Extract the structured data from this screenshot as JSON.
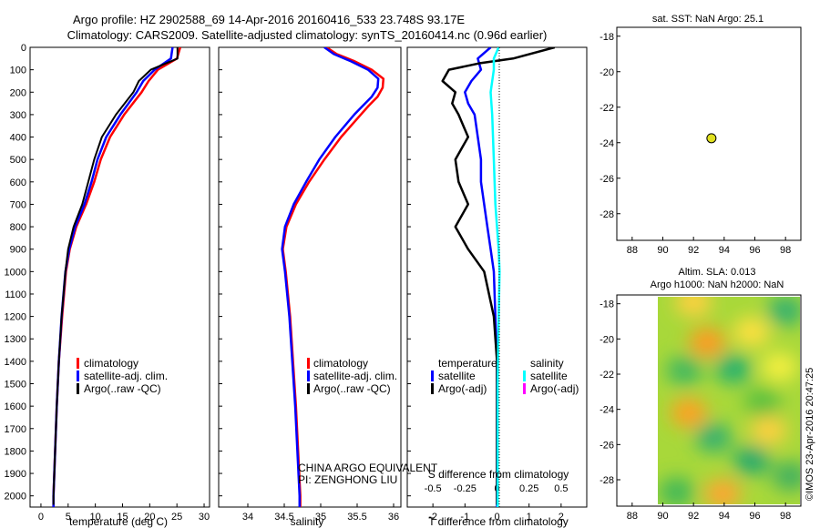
{
  "header": {
    "line1": "Argo profile: HZ 2902588_69 14-Apr-2016 20160416_533 23.748S 93.17E",
    "line2": "Climatology: CARS2009. Satellite-adjusted climatology: synTS_20160414.nc (0.96d earlier)"
  },
  "legend_common": {
    "climatology": "climatology",
    "satellite": "satellite-adj. clim.",
    "argo": "Argo(..raw -QC)"
  },
  "legend_diff": {
    "temperature": "temperature",
    "salinity": "salinity",
    "satellite": "satellite",
    "argo": "Argo(-adj)"
  },
  "credits": {
    "line1": "CHINA ARGO EQUIVALENT",
    "line2": "PI: ZENGHONG LIU"
  },
  "side": {
    "sst_title": "sat. SST: NaN Argo: 25.1",
    "sla_title1": "Altim. SLA: 0.013",
    "sla_title2": "Argo h1000: NaN h2000: NaN",
    "stamp": "©IMOS 23-Apr-2016 20:47:25"
  },
  "colors": {
    "climatology": "#ff0000",
    "satellite": "#0000ff",
    "argo": "#000000",
    "sal_satellite": "#00ffff",
    "sal_argo": "#ff00ff",
    "marker": "#e0e020"
  },
  "chart_data": [
    {
      "type": "line",
      "panel": "temperature",
      "xlabel": "temperature (deg C)",
      "ylim": [
        2050,
        0
      ],
      "xlim": [
        -2,
        31
      ],
      "yticks": [
        0,
        100,
        200,
        300,
        400,
        500,
        600,
        700,
        800,
        900,
        1000,
        1100,
        1200,
        1300,
        1400,
        1500,
        1600,
        1700,
        1800,
        1900,
        2000
      ],
      "xticks": [
        0,
        5,
        10,
        15,
        20,
        25,
        30
      ],
      "series": [
        {
          "name": "climatology",
          "depth": [
            0,
            50,
            100,
            150,
            200,
            300,
            400,
            500,
            600,
            700,
            800,
            900,
            1000,
            1200,
            1400,
            1600,
            1800,
            2000,
            2050
          ],
          "values": [
            25.6,
            25.0,
            21.5,
            19.8,
            18.5,
            15.3,
            12.7,
            11.0,
            9.8,
            8.3,
            6.5,
            5.3,
            4.6,
            3.9,
            3.3,
            2.9,
            2.6,
            2.3,
            2.3
          ]
        },
        {
          "name": "satellite-adj. clim.",
          "depth": [
            0,
            50,
            100,
            150,
            200,
            300,
            400,
            500,
            600,
            700,
            800,
            900,
            1000,
            1200,
            1400,
            1600,
            1800,
            2000,
            2050
          ],
          "values": [
            24.2,
            23.9,
            20.9,
            18.8,
            17.6,
            14.6,
            12.0,
            10.4,
            9.3,
            8.0,
            6.3,
            5.2,
            4.5,
            3.8,
            3.3,
            2.9,
            2.6,
            2.3,
            2.3
          ]
        },
        {
          "name": "Argo(..raw -QC)",
          "depth": [
            0,
            50,
            100,
            150,
            200,
            300,
            400,
            500,
            600,
            700,
            800,
            900,
            1000,
            1200,
            1400,
            1600,
            1800,
            2000,
            2040
          ],
          "values": [
            25.1,
            25.1,
            20.2,
            18.0,
            17.0,
            13.8,
            11.2,
            9.8,
            8.7,
            7.6,
            6.0,
            5.0,
            4.5,
            3.8,
            3.3,
            2.9,
            2.6,
            2.3,
            2.3
          ]
        }
      ]
    },
    {
      "type": "line",
      "panel": "salinity",
      "xlabel": "salinity",
      "ylim": [
        2050,
        0
      ],
      "xlim": [
        33.6,
        36.1
      ],
      "xticks": [
        34,
        34.5,
        35,
        35.5,
        36
      ],
      "series": [
        {
          "name": "climatology",
          "depth": [
            0,
            30,
            60,
            100,
            140,
            180,
            220,
            260,
            300,
            400,
            500,
            600,
            700,
            800,
            900,
            1000,
            1200,
            1400,
            1600,
            1800,
            2000,
            2050
          ],
          "values": [
            35.08,
            35.22,
            35.45,
            35.7,
            35.86,
            35.85,
            35.78,
            35.66,
            35.55,
            35.28,
            35.05,
            34.84,
            34.66,
            34.53,
            34.48,
            34.52,
            34.58,
            34.62,
            34.66,
            34.69,
            34.72,
            34.72
          ]
        },
        {
          "name": "satellite-adj. clim.",
          "depth": [
            0,
            30,
            60,
            100,
            140,
            180,
            220,
            260,
            300,
            400,
            500,
            600,
            700,
            800,
            900,
            1000,
            1200,
            1400,
            1600,
            1800,
            2000,
            2050
          ],
          "values": [
            35.05,
            35.18,
            35.4,
            35.65,
            35.79,
            35.78,
            35.7,
            35.58,
            35.46,
            35.2,
            34.98,
            34.8,
            34.63,
            34.51,
            34.47,
            34.51,
            34.57,
            34.61,
            34.65,
            34.68,
            34.71,
            34.71
          ]
        }
      ]
    },
    {
      "type": "line",
      "panel": "difference",
      "xlabel": "T difference from climatology",
      "xlabel_top": "S difference from climatology",
      "ylim": [
        2050,
        0
      ],
      "xlim": [
        -2.8,
        2.8
      ],
      "xticks_T": [
        -2,
        -1,
        0,
        1,
        2
      ],
      "xticks_S": [
        "-0.5",
        "-0.25",
        "0",
        "0.25",
        "0.5"
      ],
      "series": [
        {
          "name": "temperature satellite",
          "depth": [
            0,
            50,
            100,
            150,
            200,
            250,
            300,
            400,
            500,
            600,
            700,
            800,
            900,
            1000,
            1200,
            1400,
            1600,
            1800,
            2000,
            2050
          ],
          "values": [
            -0.2,
            -0.6,
            -0.5,
            -0.8,
            -1.0,
            -0.9,
            -0.7,
            -0.6,
            -0.5,
            -0.5,
            -0.4,
            -0.3,
            -0.2,
            -0.1,
            -0.05,
            0,
            0,
            0,
            0,
            0
          ]
        },
        {
          "name": "temperature Argo(-adj)",
          "depth": [
            0,
            50,
            70,
            100,
            150,
            200,
            250,
            300,
            400,
            500,
            600,
            700,
            800,
            900,
            1000,
            1200,
            1400,
            1600,
            1800,
            2000,
            2040
          ],
          "values": [
            1.8,
            0.5,
            -0.5,
            -1.5,
            -1.7,
            -1.3,
            -1.4,
            -1.2,
            -0.9,
            -1.3,
            -1.2,
            -0.9,
            -1.3,
            -0.9,
            -0.4,
            -0.1,
            0,
            0,
            0,
            0,
            0
          ]
        },
        {
          "name": "salinity satellite",
          "depth": [
            0,
            50,
            100,
            200,
            300,
            500,
            700,
            900,
            1000,
            1200,
            1500,
            1800,
            2000,
            2050
          ],
          "values": [
            0.05,
            -0.1,
            -0.1,
            -0.2,
            -0.15,
            -0.1,
            -0.05,
            0.05,
            0.08,
            0.05,
            0.02,
            0.02,
            0.02,
            0.02
          ]
        }
      ]
    },
    {
      "type": "scatter",
      "panel": "sat. SST map",
      "xlim": [
        87,
        99
      ],
      "ylim": [
        -29.5,
        -17.5
      ],
      "xticks": [
        88,
        90,
        92,
        94,
        96,
        98
      ],
      "yticks": [
        -18,
        -20,
        -22,
        -24,
        -26,
        -28
      ],
      "points": [
        {
          "x": 93.17,
          "y": -23.748
        }
      ]
    },
    {
      "type": "heatmap",
      "panel": "Altim. SLA map",
      "xlim": [
        87,
        99
      ],
      "ylim": [
        -29.5,
        -17.5
      ],
      "xticks": [
        88,
        90,
        92,
        94,
        96,
        98
      ],
      "yticks": [
        -18,
        -20,
        -22,
        -24,
        -26,
        -28
      ],
      "blobs": [
        {
          "x": 92.9,
          "y": -20.2,
          "c": "#ff9a20"
        },
        {
          "x": 91.7,
          "y": -24.2,
          "c": "#ffa020"
        },
        {
          "x": 93.9,
          "y": -28.8,
          "c": "#ffa530"
        },
        {
          "x": 96.9,
          "y": -25.2,
          "c": "#ffd040"
        },
        {
          "x": 95.8,
          "y": -19.6,
          "c": "#ffe040"
        },
        {
          "x": 97.6,
          "y": -21.6,
          "c": "#f5ef40"
        },
        {
          "x": 92.0,
          "y": -17.9,
          "c": "#ffd040"
        },
        {
          "x": 94.6,
          "y": -21.7,
          "c": "#20b070"
        },
        {
          "x": 91.4,
          "y": -21.8,
          "c": "#40b860"
        },
        {
          "x": 93.3,
          "y": -25.6,
          "c": "#30b070"
        },
        {
          "x": 95.8,
          "y": -26.9,
          "c": "#20a870"
        },
        {
          "x": 90.9,
          "y": -28.7,
          "c": "#40b858"
        },
        {
          "x": 98.0,
          "y": -18.4,
          "c": "#30b070"
        },
        {
          "x": 96.5,
          "y": -23.6,
          "c": "#58c040"
        },
        {
          "x": 98.3,
          "y": -27.8,
          "c": "#40b060"
        }
      ]
    }
  ]
}
